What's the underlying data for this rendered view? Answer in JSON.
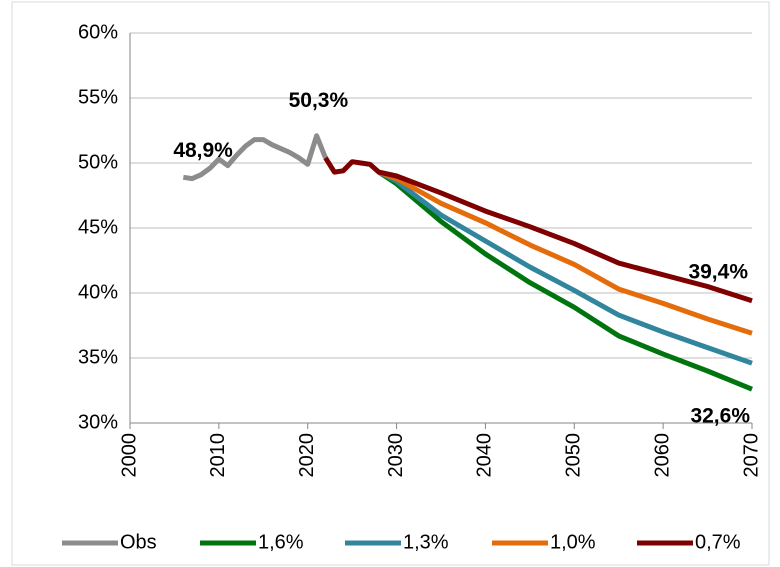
{
  "chart_data": {
    "type": "line",
    "series": [
      {
        "name": "Obs",
        "color": "#8c8c8c",
        "x": [
          2006,
          2007,
          2008,
          2009,
          2010,
          2011,
          2012,
          2013,
          2014,
          2015,
          2016,
          2017,
          2018,
          2019,
          2020,
          2021,
          2022
        ],
        "values": [
          48.9,
          48.8,
          49.1,
          49.6,
          50.3,
          49.8,
          50.6,
          51.3,
          51.8,
          51.8,
          51.4,
          51.1,
          50.8,
          50.4,
          49.9,
          52.1,
          50.4
        ]
      },
      {
        "name": "1,6%",
        "color": "#00750f",
        "x": [
          2028,
          2030,
          2035,
          2040,
          2045,
          2050,
          2055,
          2060,
          2065,
          2070
        ],
        "values": [
          49.3,
          48.4,
          45.5,
          43.0,
          40.8,
          38.9,
          36.7,
          35.3,
          34.0,
          32.6
        ]
      },
      {
        "name": "1,3%",
        "color": "#31859c",
        "x": [
          2028,
          2030,
          2035,
          2040,
          2045,
          2050,
          2055,
          2060,
          2065,
          2070
        ],
        "values": [
          49.3,
          48.6,
          46.0,
          44.0,
          42.0,
          40.2,
          38.3,
          37.0,
          35.8,
          34.6
        ]
      },
      {
        "name": "1,0%",
        "color": "#e46c0a",
        "x": [
          2028,
          2030,
          2035,
          2040,
          2045,
          2050,
          2055,
          2060,
          2065,
          2070
        ],
        "values": [
          49.3,
          48.8,
          46.9,
          45.4,
          43.7,
          42.2,
          40.3,
          39.2,
          38.0,
          36.9
        ]
      },
      {
        "name": "0,7%",
        "color": "#7f0000",
        "x": [
          2022,
          2023,
          2024,
          2025,
          2026,
          2027,
          2028,
          2030,
          2035,
          2040,
          2045,
          2050,
          2055,
          2060,
          2065,
          2070
        ],
        "values": [
          50.4,
          49.3,
          49.4,
          50.1,
          50.0,
          49.9,
          49.3,
          49.0,
          47.7,
          46.3,
          45.1,
          43.8,
          42.3,
          41.4,
          40.5,
          39.4
        ]
      }
    ],
    "annotations": [
      {
        "text": "48,9%",
        "color": "#8c8c8c"
      },
      {
        "text": "50,3%",
        "color": "#8c8c8c"
      },
      {
        "text": "39,4%",
        "color": "#7f0000"
      },
      {
        "text": "32,6%",
        "color": "#00750f"
      }
    ],
    "xlim": [
      2000,
      2070
    ],
    "xticks": [
      2000,
      2010,
      2020,
      2030,
      2040,
      2050,
      2060,
      2070
    ],
    "ylim": [
      30,
      60
    ],
    "yticks": [
      {
        "value": 30,
        "label": "30%"
      },
      {
        "value": 35,
        "label": "35%"
      },
      {
        "value": 40,
        "label": "40%"
      },
      {
        "value": 45,
        "label": "45%"
      },
      {
        "value": 50,
        "label": "50%"
      },
      {
        "value": 55,
        "label": "55%"
      },
      {
        "value": 60,
        "label": "60%"
      }
    ],
    "grid": true,
    "legend": "bottom"
  }
}
